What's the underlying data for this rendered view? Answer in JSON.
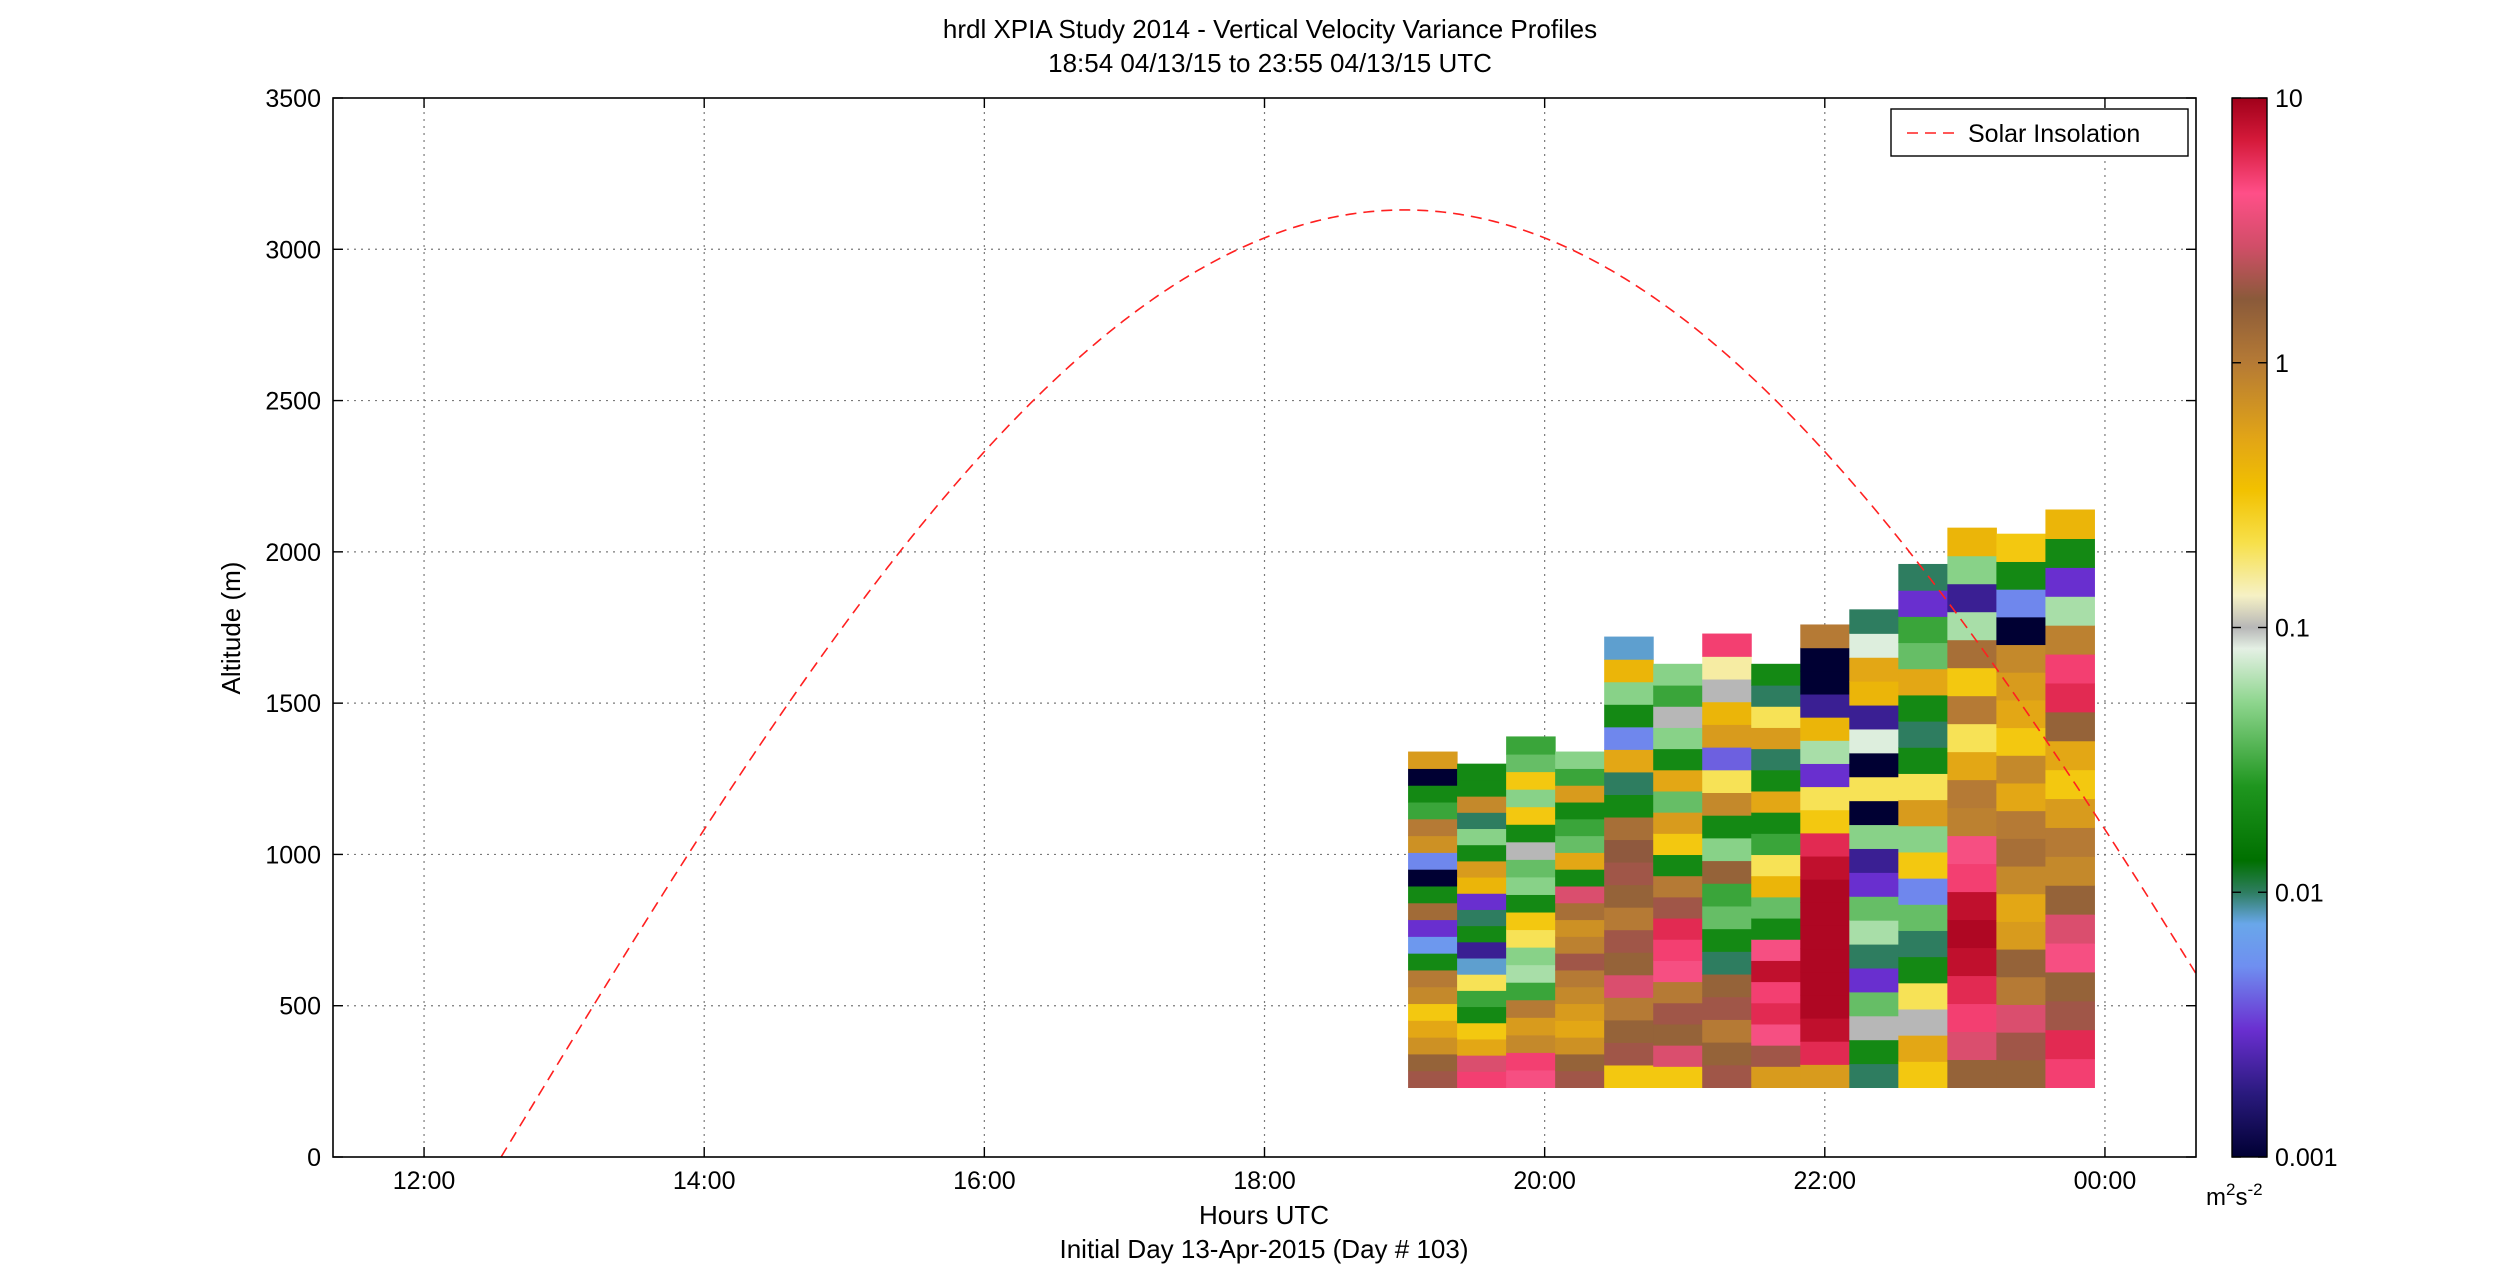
{
  "title": "hrdl XPIA Study 2014 - Vertical Velocity Variance Profiles",
  "subtitle": "18:54 04/13/15 to 23:55 04/13/15  UTC",
  "footer": "Initial Day 13-Apr-2015 (Day # 103)",
  "colorbar": {
    "ticks": [
      "10",
      "1",
      "0.1",
      "0.01",
      "0.001"
    ],
    "unit_main": "m",
    "unit_sup1": "2",
    "unit_mid": "s",
    "unit_sup2": "-2",
    "scale": "log",
    "range": [
      0.001,
      10
    ]
  },
  "chart_data": {
    "type": "heatmap",
    "title": "hrdl XPIA Study 2014 - Vertical Velocity Variance Profiles",
    "subtitle": "18:54 04/13/15 to 23:55 04/13/15  UTC",
    "xlabel": "Hours UTC",
    "ylabel": "Altitude (m)",
    "x_ticks": [
      "12:00",
      "14:00",
      "16:00",
      "18:00",
      "20:00",
      "22:00",
      "00:00"
    ],
    "y_ticks": [
      "0",
      "500",
      "1000",
      "1500",
      "2000",
      "2500",
      "3000",
      "3500"
    ],
    "xlim": [
      11.35,
      24.65
    ],
    "ylim": [
      0,
      3500
    ],
    "grid": true,
    "legend": {
      "entries": [
        "Solar Insolation"
      ],
      "placement": "top-right"
    },
    "color_scale": {
      "type": "log",
      "range": [
        0.001,
        10
      ],
      "units": "m^2 s^-2"
    },
    "solar_insolation": {
      "style": "red dashed",
      "peak_time": 19.0,
      "peak_altitude": 3130,
      "zero_crossing_time": 12.55
    },
    "profiles_time_range": [
      "19:15",
      "23:55"
    ],
    "profiles": [
      {
        "time": 19.2,
        "base": 230,
        "top": 1340,
        "values": [
          2.0,
          1.5,
          0.7,
          0.5,
          0.3,
          0.8,
          1.0,
          0.02,
          0.006,
          0.003,
          1.3,
          0.02,
          0.001,
          0.005,
          0.7,
          1.0,
          0.03,
          0.02,
          0.001,
          0.6
        ]
      },
      {
        "time": 19.55,
        "base": 230,
        "top": 1300,
        "values": [
          5.0,
          3.0,
          0.5,
          0.3,
          0.02,
          0.03,
          0.2,
          0.008,
          0.002,
          0.02,
          0.01,
          0.003,
          0.4,
          0.6,
          0.02,
          0.05,
          0.01,
          0.8,
          0.02,
          0.02
        ]
      },
      {
        "time": 19.9,
        "base": 230,
        "top": 1390,
        "values": [
          4.0,
          5.0,
          0.8,
          0.6,
          1.0,
          0.03,
          0.06,
          0.05,
          0.2,
          0.3,
          0.02,
          0.05,
          0.04,
          0.1,
          0.02,
          0.3,
          0.05,
          0.3,
          0.04,
          0.03
        ]
      },
      {
        "time": 20.25,
        "base": 230,
        "top": 1340,
        "values": [
          2.0,
          1.5,
          0.7,
          0.5,
          0.6,
          0.8,
          1.0,
          2.0,
          0.9,
          0.7,
          1.2,
          3.0,
          0.02,
          0.5,
          0.04,
          0.03,
          0.02,
          0.6,
          0.03,
          0.05
        ]
      },
      {
        "time": 20.6,
        "base": 230,
        "top": 1720,
        "values": [
          0.3,
          2.0,
          1.5,
          1.0,
          3.0,
          1.5,
          2.0,
          1.0,
          1.5,
          2.0,
          1.8,
          1.2,
          0.02,
          0.01,
          0.5,
          0.005,
          0.02,
          0.05,
          0.4,
          0.008
        ]
      },
      {
        "time": 20.95,
        "base": 230,
        "top": 1630,
        "values": [
          0.3,
          3.0,
          1.5,
          2.0,
          1.0,
          4.0,
          5.0,
          6.0,
          2.0,
          1.0,
          0.02,
          0.3,
          0.6,
          0.04,
          0.5,
          0.02,
          0.05,
          0.1,
          0.03,
          0.05
        ]
      },
      {
        "time": 21.3,
        "base": 230,
        "top": 1730,
        "values": [
          2.0,
          1.5,
          1.0,
          2.0,
          1.5,
          0.01,
          0.02,
          0.04,
          0.03,
          1.5,
          0.05,
          0.02,
          0.8,
          0.2,
          0.004,
          0.6,
          0.4,
          0.1,
          0.15,
          5.0
        ]
      },
      {
        "time": 21.65,
        "base": 230,
        "top": 1630,
        "values": [
          0.6,
          2.0,
          4.0,
          6.0,
          5.0,
          8.0,
          4.0,
          0.02,
          0.04,
          0.4,
          0.2,
          0.03,
          0.02,
          0.5,
          0.02,
          0.01,
          0.6,
          0.2,
          0.01,
          0.02
        ]
      },
      {
        "time": 22.0,
        "base": 230,
        "top": 1760,
        "values": [
          0.6,
          6.0,
          8.0,
          9.0,
          9.0,
          9.0,
          9.0,
          9.0,
          9.0,
          8.0,
          6.0,
          0.3,
          0.2,
          0.003,
          0.06,
          0.4,
          0.002,
          0.001,
          0.001,
          1.0
        ]
      },
      {
        "time": 22.35,
        "base": 230,
        "top": 1810,
        "values": [
          0.01,
          0.02,
          0.1,
          0.04,
          0.003,
          0.01,
          0.06,
          0.04,
          0.003,
          0.002,
          0.05,
          0.001,
          0.2,
          0.001,
          0.08,
          0.002,
          0.4,
          0.5,
          0.08,
          0.01
        ]
      },
      {
        "time": 22.7,
        "base": 230,
        "top": 1960,
        "values": [
          0.3,
          0.5,
          0.1,
          0.2,
          0.02,
          0.01,
          0.04,
          0.005,
          0.3,
          0.05,
          0.6,
          0.2,
          0.02,
          0.01,
          0.02,
          0.5,
          0.04,
          0.03,
          0.003,
          0.01
        ]
      },
      {
        "time": 23.05,
        "base": 230,
        "top": 2080,
        "values": [
          1.5,
          3.0,
          5.0,
          6.0,
          8.0,
          9.0,
          8.0,
          5.0,
          4.0,
          0.9,
          1.0,
          0.5,
          0.2,
          1.0,
          0.3,
          1.2,
          0.06,
          0.002,
          0.05,
          0.4
        ]
      },
      {
        "time": 23.4,
        "base": 230,
        "top": 2060,
        "values": [
          1.5,
          2.0,
          3.0,
          1.0,
          1.5,
          0.6,
          0.5,
          0.8,
          1.2,
          1.0,
          0.5,
          0.8,
          0.3,
          0.5,
          0.6,
          0.8,
          0.001,
          0.005,
          0.02,
          0.3
        ]
      },
      {
        "time": 23.75,
        "base": 230,
        "top": 2140,
        "values": [
          5.0,
          6.0,
          2.0,
          1.5,
          4.0,
          3.0,
          1.5,
          0.8,
          1.0,
          0.6,
          0.3,
          0.5,
          1.5,
          6.0,
          5.0,
          0.9,
          0.06,
          0.003,
          0.02,
          0.4
        ]
      }
    ]
  }
}
